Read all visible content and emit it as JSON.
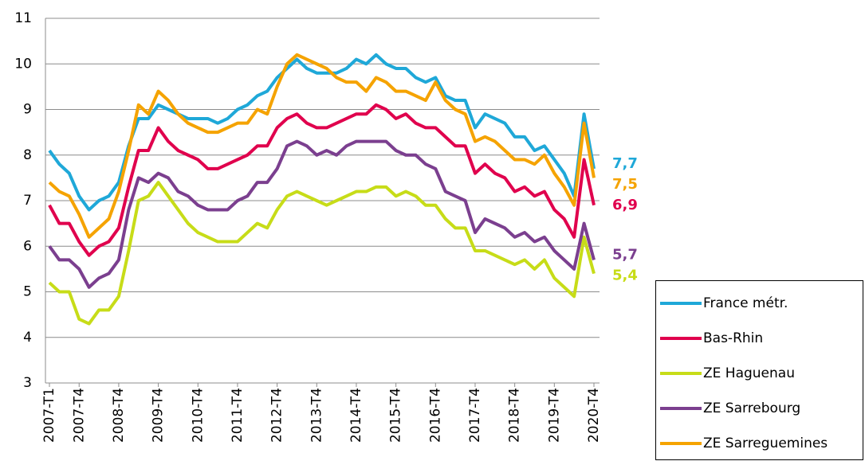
{
  "chart_data": {
    "type": "line",
    "categories": [
      "2007-T1",
      null,
      null,
      "2007-T4",
      null,
      null,
      null,
      "2008-T4",
      null,
      null,
      null,
      "2009-T4",
      null,
      null,
      null,
      "2010-T4",
      null,
      null,
      null,
      "2011-T4",
      null,
      null,
      null,
      "2012-T4",
      null,
      null,
      null,
      "2013-T4",
      null,
      null,
      null,
      "2014-T4",
      null,
      null,
      null,
      "2015-T4",
      null,
      null,
      null,
      "2016-T4",
      null,
      null,
      null,
      "2017-T4",
      null,
      null,
      null,
      "2018-T4",
      null,
      null,
      null,
      "2019-T4",
      null,
      null,
      null,
      "2020-T4"
    ],
    "ylim": [
      3,
      11
    ],
    "yticks": [
      3,
      4,
      5,
      6,
      7,
      8,
      9,
      10,
      11
    ],
    "grid": true,
    "legend": "bottom-right",
    "series": [
      {
        "name": "France métr.",
        "color": "#1fa8d8",
        "values": [
          8.1,
          7.8,
          7.6,
          7.1,
          6.8,
          7.0,
          7.1,
          7.4,
          8.2,
          8.8,
          8.8,
          9.1,
          9.0,
          8.9,
          8.8,
          8.8,
          8.8,
          8.7,
          8.8,
          9.0,
          9.1,
          9.3,
          9.4,
          9.7,
          9.9,
          10.1,
          9.9,
          9.8,
          9.8,
          9.8,
          9.9,
          10.1,
          10.0,
          10.2,
          10.0,
          9.9,
          9.9,
          9.7,
          9.6,
          9.7,
          9.3,
          9.2,
          9.2,
          8.6,
          8.9,
          8.8,
          8.7,
          8.4,
          8.4,
          8.1,
          8.2,
          7.9,
          7.6,
          7.1,
          8.9,
          7.7
        ],
        "value_labels": [
          null,
          null,
          null,
          null,
          null,
          null,
          null,
          null,
          null,
          null,
          null,
          null,
          null,
          null,
          null,
          null,
          null,
          null,
          null,
          null,
          null,
          null,
          null,
          null,
          null,
          null,
          null,
          null,
          null,
          null,
          null,
          null,
          null,
          null,
          null,
          null,
          null,
          null,
          null,
          null,
          null,
          null,
          null,
          null,
          null,
          null,
          null,
          null,
          null,
          null,
          null,
          null,
          null,
          null,
          null,
          "7,7"
        ]
      },
      {
        "name": "Bas-Rhin",
        "color": "#e0004d",
        "values": [
          6.9,
          6.5,
          6.5,
          6.1,
          5.8,
          6.0,
          6.1,
          6.4,
          7.3,
          8.1,
          8.1,
          8.6,
          8.3,
          8.1,
          8.0,
          7.9,
          7.7,
          7.7,
          7.8,
          7.9,
          8.0,
          8.2,
          8.2,
          8.6,
          8.8,
          8.9,
          8.7,
          8.6,
          8.6,
          8.7,
          8.8,
          8.9,
          8.9,
          9.1,
          9.0,
          8.8,
          8.9,
          8.7,
          8.6,
          8.6,
          8.4,
          8.2,
          8.2,
          7.6,
          7.8,
          7.6,
          7.5,
          7.2,
          7.3,
          7.1,
          7.2,
          6.8,
          6.6,
          6.2,
          7.9,
          6.9
        ],
        "value_labels": [
          null,
          null,
          null,
          null,
          null,
          null,
          null,
          null,
          null,
          null,
          null,
          null,
          null,
          null,
          null,
          null,
          null,
          null,
          null,
          null,
          null,
          null,
          null,
          null,
          null,
          null,
          null,
          null,
          null,
          null,
          null,
          null,
          null,
          null,
          null,
          null,
          null,
          null,
          null,
          null,
          null,
          null,
          null,
          null,
          null,
          null,
          null,
          null,
          null,
          null,
          null,
          null,
          null,
          null,
          null,
          "6,9"
        ]
      },
      {
        "name": "ZE Haguenau",
        "color": "#c7dc18",
        "values": [
          5.2,
          5.0,
          5.0,
          4.4,
          4.3,
          4.6,
          4.6,
          4.9,
          5.9,
          7.0,
          7.1,
          7.4,
          7.1,
          6.8,
          6.5,
          6.3,
          6.2,
          6.1,
          6.1,
          6.1,
          6.3,
          6.5,
          6.4,
          6.8,
          7.1,
          7.2,
          7.1,
          7.0,
          6.9,
          7.0,
          7.1,
          7.2,
          7.2,
          7.3,
          7.3,
          7.1,
          7.2,
          7.1,
          6.9,
          6.9,
          6.6,
          6.4,
          6.4,
          5.9,
          5.9,
          5.8,
          5.7,
          5.6,
          5.7,
          5.5,
          5.7,
          5.3,
          5.1,
          4.9,
          6.2,
          5.4
        ],
        "value_labels": [
          null,
          null,
          null,
          null,
          null,
          null,
          null,
          null,
          null,
          null,
          null,
          null,
          null,
          null,
          null,
          null,
          null,
          null,
          null,
          null,
          null,
          null,
          null,
          null,
          null,
          null,
          null,
          null,
          null,
          null,
          null,
          null,
          null,
          null,
          null,
          null,
          null,
          null,
          null,
          null,
          null,
          null,
          null,
          null,
          null,
          null,
          null,
          null,
          null,
          null,
          null,
          null,
          null,
          null,
          null,
          "5,4"
        ]
      },
      {
        "name": "ZE Sarrebourg",
        "color": "#7b3f8f",
        "values": [
          6.0,
          5.7,
          5.7,
          5.5,
          5.1,
          5.3,
          5.4,
          5.7,
          6.8,
          7.5,
          7.4,
          7.6,
          7.5,
          7.2,
          7.1,
          6.9,
          6.8,
          6.8,
          6.8,
          7.0,
          7.1,
          7.4,
          7.4,
          7.7,
          8.2,
          8.3,
          8.2,
          8.0,
          8.1,
          8.0,
          8.2,
          8.3,
          8.3,
          8.3,
          8.3,
          8.1,
          8.0,
          8.0,
          7.8,
          7.7,
          7.2,
          7.1,
          7.0,
          6.3,
          6.6,
          6.5,
          6.4,
          6.2,
          6.3,
          6.1,
          6.2,
          5.9,
          5.7,
          5.5,
          6.5,
          5.7
        ],
        "value_labels": [
          null,
          null,
          null,
          null,
          null,
          null,
          null,
          null,
          null,
          null,
          null,
          null,
          null,
          null,
          null,
          null,
          null,
          null,
          null,
          null,
          null,
          null,
          null,
          null,
          null,
          null,
          null,
          null,
          null,
          null,
          null,
          null,
          null,
          null,
          null,
          null,
          null,
          null,
          null,
          null,
          null,
          null,
          null,
          null,
          null,
          null,
          null,
          null,
          null,
          null,
          null,
          null,
          null,
          null,
          null,
          "5,7"
        ]
      },
      {
        "name": "ZE Sarreguemines",
        "color": "#f5a300",
        "values": [
          7.4,
          7.2,
          7.1,
          6.7,
          6.2,
          6.4,
          6.6,
          7.2,
          8.1,
          9.1,
          8.9,
          9.4,
          9.2,
          8.9,
          8.7,
          8.6,
          8.5,
          8.5,
          8.6,
          8.7,
          8.7,
          9.0,
          8.9,
          9.5,
          10.0,
          10.2,
          10.1,
          10.0,
          9.9,
          9.7,
          9.6,
          9.6,
          9.4,
          9.7,
          9.6,
          9.4,
          9.4,
          9.3,
          9.2,
          9.6,
          9.2,
          9.0,
          8.9,
          8.3,
          8.4,
          8.3,
          8.1,
          7.9,
          7.9,
          7.8,
          8.0,
          7.6,
          7.3,
          6.9,
          8.7,
          7.5
        ],
        "value_labels": [
          null,
          null,
          null,
          null,
          null,
          null,
          null,
          null,
          null,
          null,
          null,
          null,
          null,
          null,
          null,
          null,
          null,
          null,
          null,
          null,
          null,
          null,
          null,
          null,
          null,
          null,
          null,
          null,
          null,
          null,
          null,
          null,
          null,
          null,
          null,
          null,
          null,
          null,
          null,
          null,
          null,
          null,
          null,
          null,
          null,
          null,
          null,
          null,
          null,
          null,
          null,
          null,
          null,
          null,
          null,
          "7,5"
        ]
      }
    ]
  }
}
